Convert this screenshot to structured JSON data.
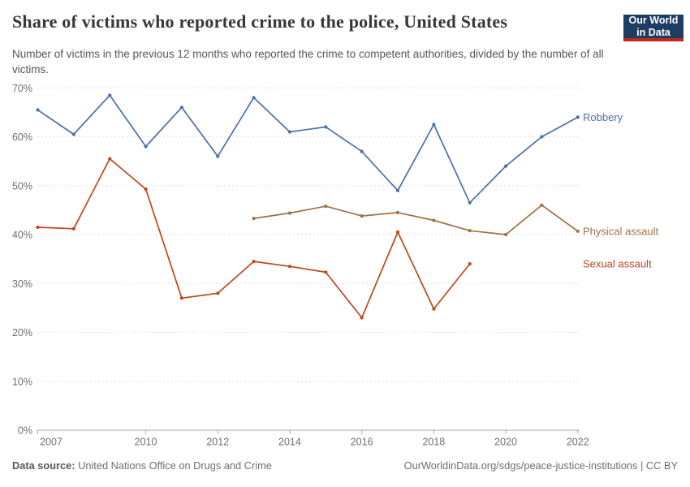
{
  "header": {
    "title": "Share of victims who reported crime to the police, United States",
    "subtitle": "Number of victims in the previous 12 months who reported the crime to competent authorities, divided by the number of all victims.",
    "logo": {
      "line1": "Our World",
      "line2": "in Data",
      "bg_color": "#1d3d63",
      "stripe_color": "#c0281e"
    }
  },
  "chart_data": {
    "type": "line",
    "title": "Share of victims who reported crime to the police, United States",
    "xlabel": "",
    "ylabel": "",
    "x_axis": {
      "range": [
        2007,
        2022
      ],
      "ticks": [
        2007,
        2010,
        2012,
        2014,
        2016,
        2018,
        2020,
        2022
      ]
    },
    "y_axis": {
      "range": [
        0,
        70
      ],
      "ticks": [
        0,
        10,
        20,
        30,
        40,
        50,
        60,
        70
      ],
      "unit": "%",
      "grid": "dashed"
    },
    "legend_position": "end-of-line labels, right side",
    "series": [
      {
        "name": "Robbery",
        "color": "#4d6fa9",
        "start_year": 2007,
        "years": [
          2007,
          2008,
          2009,
          2010,
          2011,
          2012,
          2013,
          2014,
          2015,
          2016,
          2017,
          2018,
          2019,
          2020,
          2021,
          2022
        ],
        "values": [
          65.5,
          60.5,
          68.5,
          58,
          66,
          56,
          68,
          61,
          62,
          57,
          49,
          62.5,
          46.5,
          54,
          60,
          64
        ]
      },
      {
        "name": "Physical assault",
        "color": "#9d7344",
        "start_year": 2013,
        "years": [
          2013,
          2014,
          2015,
          2016,
          2017,
          2018,
          2019,
          2020,
          2021,
          2022
        ],
        "values": [
          43.3,
          44.4,
          45.8,
          43.8,
          44.5,
          42.9,
          40.8,
          40,
          46,
          40.7
        ]
      },
      {
        "name": "Sexual assault",
        "color": "#c0461f",
        "start_year": 2007,
        "years": [
          2007,
          2008,
          2009,
          2010,
          2011,
          2012,
          2013,
          2014,
          2015,
          2016,
          2017,
          2018,
          2019
        ],
        "values": [
          41.5,
          41.2,
          55.5,
          49.3,
          27,
          28,
          34.5,
          33.5,
          32.3,
          23,
          40.5,
          24.8,
          34
        ]
      }
    ],
    "axis_color": "#a7a7a7",
    "grid_color": "#dedede",
    "tick_label_color": "#6e6e6e"
  },
  "footer": {
    "source_label": "Data source:",
    "source": "United Nations Office on Drugs and Crime",
    "credit": "OurWorldinData.org/sdgs/peace-justice-institutions | CC BY"
  }
}
